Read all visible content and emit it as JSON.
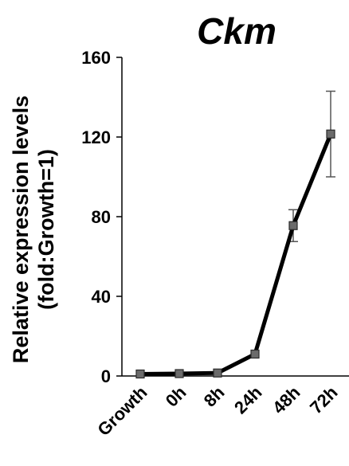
{
  "chart_data": {
    "type": "line",
    "title": "Ckm",
    "ylabel_line1": "Relative expression levels",
    "ylabel_line2": "(fold:Growth=1)",
    "xlabel": "",
    "categories": [
      "Growth",
      "0h",
      "8h",
      "24h",
      "48h",
      "72h"
    ],
    "series": [
      {
        "values": [
          1,
          1.2,
          1.5,
          11,
          75.5,
          121.5
        ],
        "error": [
          0,
          0,
          0,
          0,
          8,
          21.5
        ]
      }
    ],
    "ylim": [
      0,
      160
    ],
    "yticks": [
      0,
      40,
      80,
      120,
      160
    ],
    "grid": false,
    "legend": "none",
    "colors": {
      "line": "#000000",
      "marker": "#6b6b6b",
      "errorbar": "#555555"
    }
  }
}
